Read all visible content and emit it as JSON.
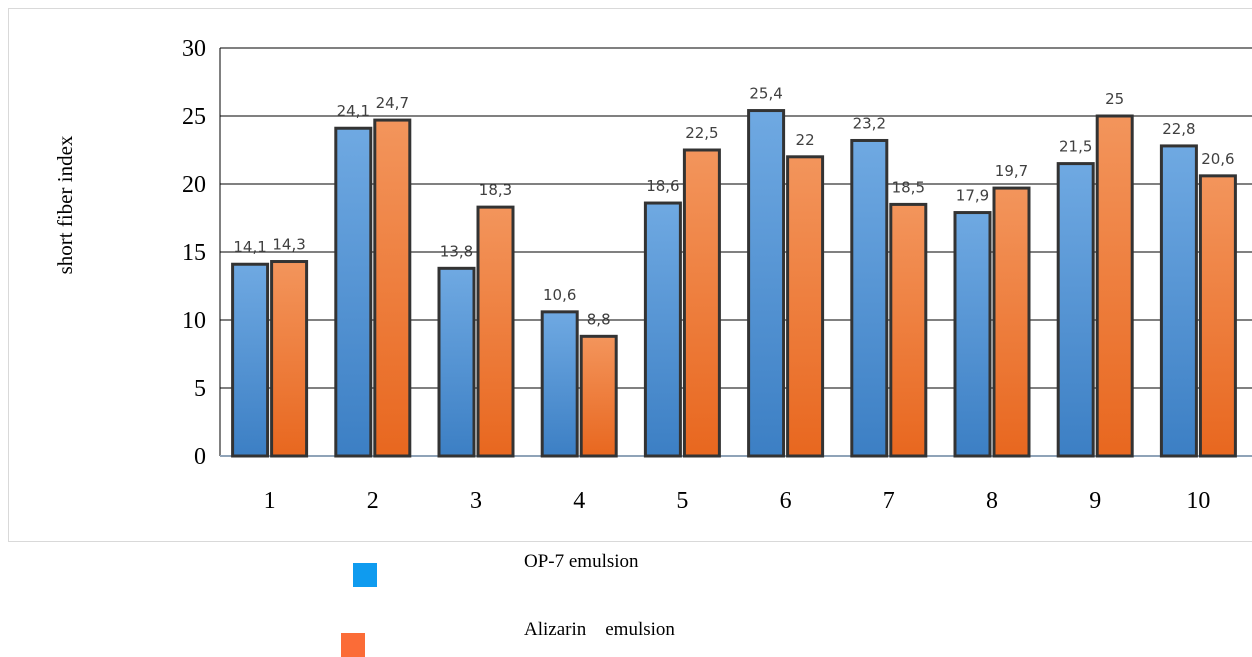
{
  "chart_data": {
    "type": "bar",
    "categories": [
      "1",
      "2",
      "3",
      "4",
      "5",
      "6",
      "7",
      "8",
      "9",
      "10"
    ],
    "series": [
      {
        "name": "OP-7 emulsion",
        "values": [
          14.1,
          24.1,
          13.8,
          10.6,
          18.6,
          25.4,
          23.2,
          17.9,
          21.5,
          22.8
        ],
        "labels": [
          "14,1",
          "24,1",
          "13,8",
          "10,6",
          "18,6",
          "25,4",
          "23,2",
          "17,9",
          "21,5",
          "22,8"
        ],
        "color": "#4a8fd4"
      },
      {
        "name": "Alizarin    emulsion",
        "values": [
          14.3,
          24.7,
          18.3,
          8.8,
          22.5,
          22,
          18.5,
          19.7,
          25,
          20.6
        ],
        "labels": [
          "14,3",
          "24,7",
          "18,3",
          "8,8",
          "22,5",
          "22",
          "18,5",
          "19,7",
          "25",
          "20,6"
        ],
        "color": "#ed7a35"
      }
    ],
    "yticks": [
      "0",
      "5",
      "10",
      "15",
      "20",
      "25",
      "30"
    ],
    "ylabel": "short  fiber index",
    "xlabel": "",
    "ylim": [
      0,
      30
    ],
    "grid": true,
    "legend_position": "bottom-left",
    "legend_colors": [
      "#0f9bef",
      "#fb6c37"
    ]
  }
}
